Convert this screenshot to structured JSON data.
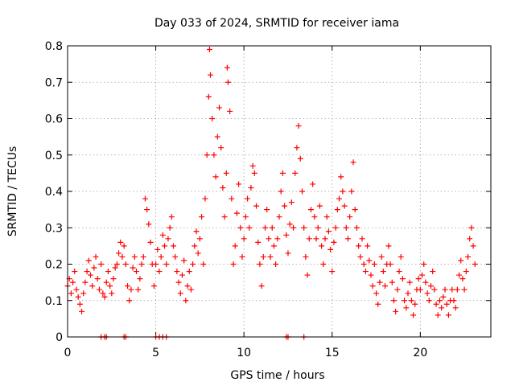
{
  "chart_data": {
    "type": "scatter",
    "title": "Day 033 of 2024, SRMTID for receiver iama",
    "xlabel": "GPS time / hours",
    "ylabel": "SRMTID / TECUs",
    "xlim": [
      0,
      24
    ],
    "ylim": [
      0,
      0.8
    ],
    "xticks": [
      0,
      5,
      10,
      15,
      20
    ],
    "xtick_labels": [
      "0",
      "5",
      "10",
      "15",
      "20"
    ],
    "yticks": [
      0,
      0.1,
      0.2,
      0.3,
      0.4,
      0.5,
      0.6,
      0.7,
      0.8
    ],
    "ytick_labels": [
      "0",
      "0.1",
      "0.2",
      "0.3",
      "0.4",
      "0.5",
      "0.6",
      "0.7",
      "0.8"
    ],
    "grid": true,
    "marker": "+",
    "color": "#ff0000",
    "series": [
      {
        "name": "SRMTID",
        "points": [
          [
            0.0,
            0.14
          ],
          [
            0.1,
            0.16
          ],
          [
            0.2,
            0.12
          ],
          [
            0.3,
            0.15
          ],
          [
            0.4,
            0.18
          ],
          [
            0.5,
            0.13
          ],
          [
            0.6,
            0.11
          ],
          [
            0.7,
            0.09
          ],
          [
            0.8,
            0.07
          ],
          [
            0.9,
            0.12
          ],
          [
            1.0,
            0.15
          ],
          [
            1.1,
            0.18
          ],
          [
            1.2,
            0.21
          ],
          [
            1.3,
            0.17
          ],
          [
            1.4,
            0.14
          ],
          [
            1.5,
            0.19
          ],
          [
            1.6,
            0.22
          ],
          [
            1.7,
            0.16
          ],
          [
            1.8,
            0.13
          ],
          [
            1.9,
            0.2
          ],
          [
            2.0,
            0.12
          ],
          [
            2.1,
            0.11
          ],
          [
            2.2,
            0.15
          ],
          [
            2.3,
            0.18
          ],
          [
            2.4,
            0.14
          ],
          [
            2.5,
            0.12
          ],
          [
            2.6,
            0.16
          ],
          [
            2.7,
            0.19
          ],
          [
            2.8,
            0.2
          ],
          [
            2.9,
            0.23
          ],
          [
            3.0,
            0.26
          ],
          [
            3.1,
            0.22
          ],
          [
            3.2,
            0.25
          ],
          [
            3.3,
            0.2
          ],
          [
            3.4,
            0.14
          ],
          [
            3.5,
            0.1
          ],
          [
            3.6,
            0.13
          ],
          [
            3.7,
            0.19
          ],
          [
            3.8,
            0.22
          ],
          [
            3.9,
            0.18
          ],
          [
            4.0,
            0.13
          ],
          [
            4.1,
            0.16
          ],
          [
            4.2,
            0.2
          ],
          [
            4.3,
            0.22
          ],
          [
            4.4,
            0.38
          ],
          [
            4.5,
            0.35
          ],
          [
            4.6,
            0.31
          ],
          [
            4.7,
            0.26
          ],
          [
            4.8,
            0.2
          ],
          [
            4.9,
            0.14
          ],
          [
            5.0,
            0.2
          ],
          [
            5.1,
            0.24
          ],
          [
            5.2,
            0.18
          ],
          [
            5.3,
            0.22
          ],
          [
            5.4,
            0.28
          ],
          [
            5.5,
            0.25
          ],
          [
            5.6,
            0.2
          ],
          [
            5.7,
            0.27
          ],
          [
            5.8,
            0.3
          ],
          [
            5.9,
            0.33
          ],
          [
            6.0,
            0.25
          ],
          [
            6.1,
            0.22
          ],
          [
            6.2,
            0.18
          ],
          [
            6.3,
            0.15
          ],
          [
            6.4,
            0.12
          ],
          [
            6.5,
            0.17
          ],
          [
            6.6,
            0.21
          ],
          [
            6.7,
            0.1
          ],
          [
            6.8,
            0.14
          ],
          [
            6.9,
            0.18
          ],
          [
            7.0,
            0.13
          ],
          [
            7.1,
            0.2
          ],
          [
            7.2,
            0.25
          ],
          [
            7.3,
            0.29
          ],
          [
            7.4,
            0.23
          ],
          [
            7.5,
            0.27
          ],
          [
            7.6,
            0.33
          ],
          [
            7.7,
            0.2
          ],
          [
            7.8,
            0.38
          ],
          [
            7.9,
            0.5
          ],
          [
            8.0,
            0.66
          ],
          [
            8.05,
            0.79
          ],
          [
            8.1,
            0.72
          ],
          [
            8.2,
            0.6
          ],
          [
            8.3,
            0.5
          ],
          [
            8.4,
            0.44
          ],
          [
            8.5,
            0.55
          ],
          [
            8.6,
            0.63
          ],
          [
            8.7,
            0.52
          ],
          [
            8.8,
            0.41
          ],
          [
            8.9,
            0.33
          ],
          [
            9.0,
            0.45
          ],
          [
            9.05,
            0.74
          ],
          [
            9.1,
            0.7
          ],
          [
            9.2,
            0.62
          ],
          [
            9.3,
            0.38
          ],
          [
            9.4,
            0.2
          ],
          [
            9.5,
            0.25
          ],
          [
            9.6,
            0.34
          ],
          [
            9.7,
            0.42
          ],
          [
            9.8,
            0.3
          ],
          [
            9.9,
            0.22
          ],
          [
            10.0,
            0.27
          ],
          [
            10.1,
            0.33
          ],
          [
            10.2,
            0.38
          ],
          [
            10.3,
            0.3
          ],
          [
            10.4,
            0.41
          ],
          [
            10.5,
            0.47
          ],
          [
            10.6,
            0.45
          ],
          [
            10.7,
            0.36
          ],
          [
            10.8,
            0.26
          ],
          [
            10.9,
            0.2
          ],
          [
            11.0,
            0.14
          ],
          [
            11.1,
            0.22
          ],
          [
            11.2,
            0.3
          ],
          [
            11.3,
            0.35
          ],
          [
            11.4,
            0.27
          ],
          [
            11.5,
            0.22
          ],
          [
            11.6,
            0.3
          ],
          [
            11.7,
            0.25
          ],
          [
            11.8,
            0.2
          ],
          [
            11.9,
            0.27
          ],
          [
            12.0,
            0.33
          ],
          [
            12.1,
            0.4
          ],
          [
            12.2,
            0.45
          ],
          [
            12.3,
            0.36
          ],
          [
            12.4,
            0.28
          ],
          [
            12.5,
            0.23
          ],
          [
            12.6,
            0.31
          ],
          [
            12.7,
            0.37
          ],
          [
            12.8,
            0.3
          ],
          [
            12.9,
            0.45
          ],
          [
            13.0,
            0.52
          ],
          [
            13.1,
            0.58
          ],
          [
            13.2,
            0.49
          ],
          [
            13.3,
            0.4
          ],
          [
            13.4,
            0.3
          ],
          [
            13.5,
            0.22
          ],
          [
            13.6,
            0.17
          ],
          [
            13.7,
            0.27
          ],
          [
            13.8,
            0.35
          ],
          [
            13.9,
            0.42
          ],
          [
            14.0,
            0.33
          ],
          [
            14.1,
            0.27
          ],
          [
            14.2,
            0.3
          ],
          [
            14.3,
            0.36
          ],
          [
            14.4,
            0.25
          ],
          [
            14.5,
            0.2
          ],
          [
            14.6,
            0.27
          ],
          [
            14.7,
            0.33
          ],
          [
            14.8,
            0.29
          ],
          [
            14.9,
            0.24
          ],
          [
            15.0,
            0.18
          ],
          [
            15.1,
            0.26
          ],
          [
            15.2,
            0.3
          ],
          [
            15.3,
            0.35
          ],
          [
            15.4,
            0.38
          ],
          [
            15.5,
            0.44
          ],
          [
            15.6,
            0.4
          ],
          [
            15.7,
            0.36
          ],
          [
            15.8,
            0.3
          ],
          [
            15.9,
            0.27
          ],
          [
            16.0,
            0.33
          ],
          [
            16.1,
            0.4
          ],
          [
            16.2,
            0.48
          ],
          [
            16.3,
            0.35
          ],
          [
            16.4,
            0.3
          ],
          [
            16.5,
            0.25
          ],
          [
            16.6,
            0.22
          ],
          [
            16.7,
            0.27
          ],
          [
            16.8,
            0.2
          ],
          [
            16.9,
            0.18
          ],
          [
            17.0,
            0.25
          ],
          [
            17.1,
            0.21
          ],
          [
            17.2,
            0.17
          ],
          [
            17.3,
            0.14
          ],
          [
            17.4,
            0.2
          ],
          [
            17.5,
            0.12
          ],
          [
            17.6,
            0.09
          ],
          [
            17.7,
            0.15
          ],
          [
            17.8,
            0.22
          ],
          [
            17.9,
            0.18
          ],
          [
            18.0,
            0.14
          ],
          [
            18.1,
            0.2
          ],
          [
            18.2,
            0.25
          ],
          [
            18.3,
            0.2
          ],
          [
            18.4,
            0.15
          ],
          [
            18.5,
            0.1
          ],
          [
            18.6,
            0.07
          ],
          [
            18.7,
            0.13
          ],
          [
            18.8,
            0.18
          ],
          [
            18.9,
            0.22
          ],
          [
            19.0,
            0.16
          ],
          [
            19.1,
            0.1
          ],
          [
            19.2,
            0.08
          ],
          [
            19.3,
            0.12
          ],
          [
            19.4,
            0.15
          ],
          [
            19.5,
            0.1
          ],
          [
            19.6,
            0.06
          ],
          [
            19.7,
            0.09
          ],
          [
            19.8,
            0.13
          ],
          [
            19.9,
            0.16
          ],
          [
            20.0,
            0.13
          ],
          [
            20.1,
            0.17
          ],
          [
            20.2,
            0.2
          ],
          [
            20.3,
            0.15
          ],
          [
            20.4,
            0.12
          ],
          [
            20.5,
            0.1
          ],
          [
            20.6,
            0.14
          ],
          [
            20.7,
            0.18
          ],
          [
            20.8,
            0.13
          ],
          [
            20.9,
            0.09
          ],
          [
            21.0,
            0.06
          ],
          [
            21.1,
            0.1
          ],
          [
            21.2,
            0.08
          ],
          [
            21.3,
            0.11
          ],
          [
            21.4,
            0.13
          ],
          [
            21.5,
            0.09
          ],
          [
            21.6,
            0.06
          ],
          [
            21.7,
            0.1
          ],
          [
            21.8,
            0.13
          ],
          [
            21.9,
            0.1
          ],
          [
            22.0,
            0.08
          ],
          [
            22.1,
            0.13
          ],
          [
            22.2,
            0.17
          ],
          [
            22.3,
            0.21
          ],
          [
            22.4,
            0.16
          ],
          [
            22.5,
            0.13
          ],
          [
            22.6,
            0.18
          ],
          [
            22.7,
            0.22
          ],
          [
            22.8,
            0.27
          ],
          [
            22.9,
            0.3
          ],
          [
            23.0,
            0.25
          ],
          [
            23.1,
            0.2
          ]
        ],
        "zero_points": [
          1.9,
          2.1,
          2.2,
          3.2,
          3.3,
          5.0,
          5.2,
          5.4,
          5.6,
          12.4,
          12.5,
          13.4
        ]
      }
    ]
  }
}
